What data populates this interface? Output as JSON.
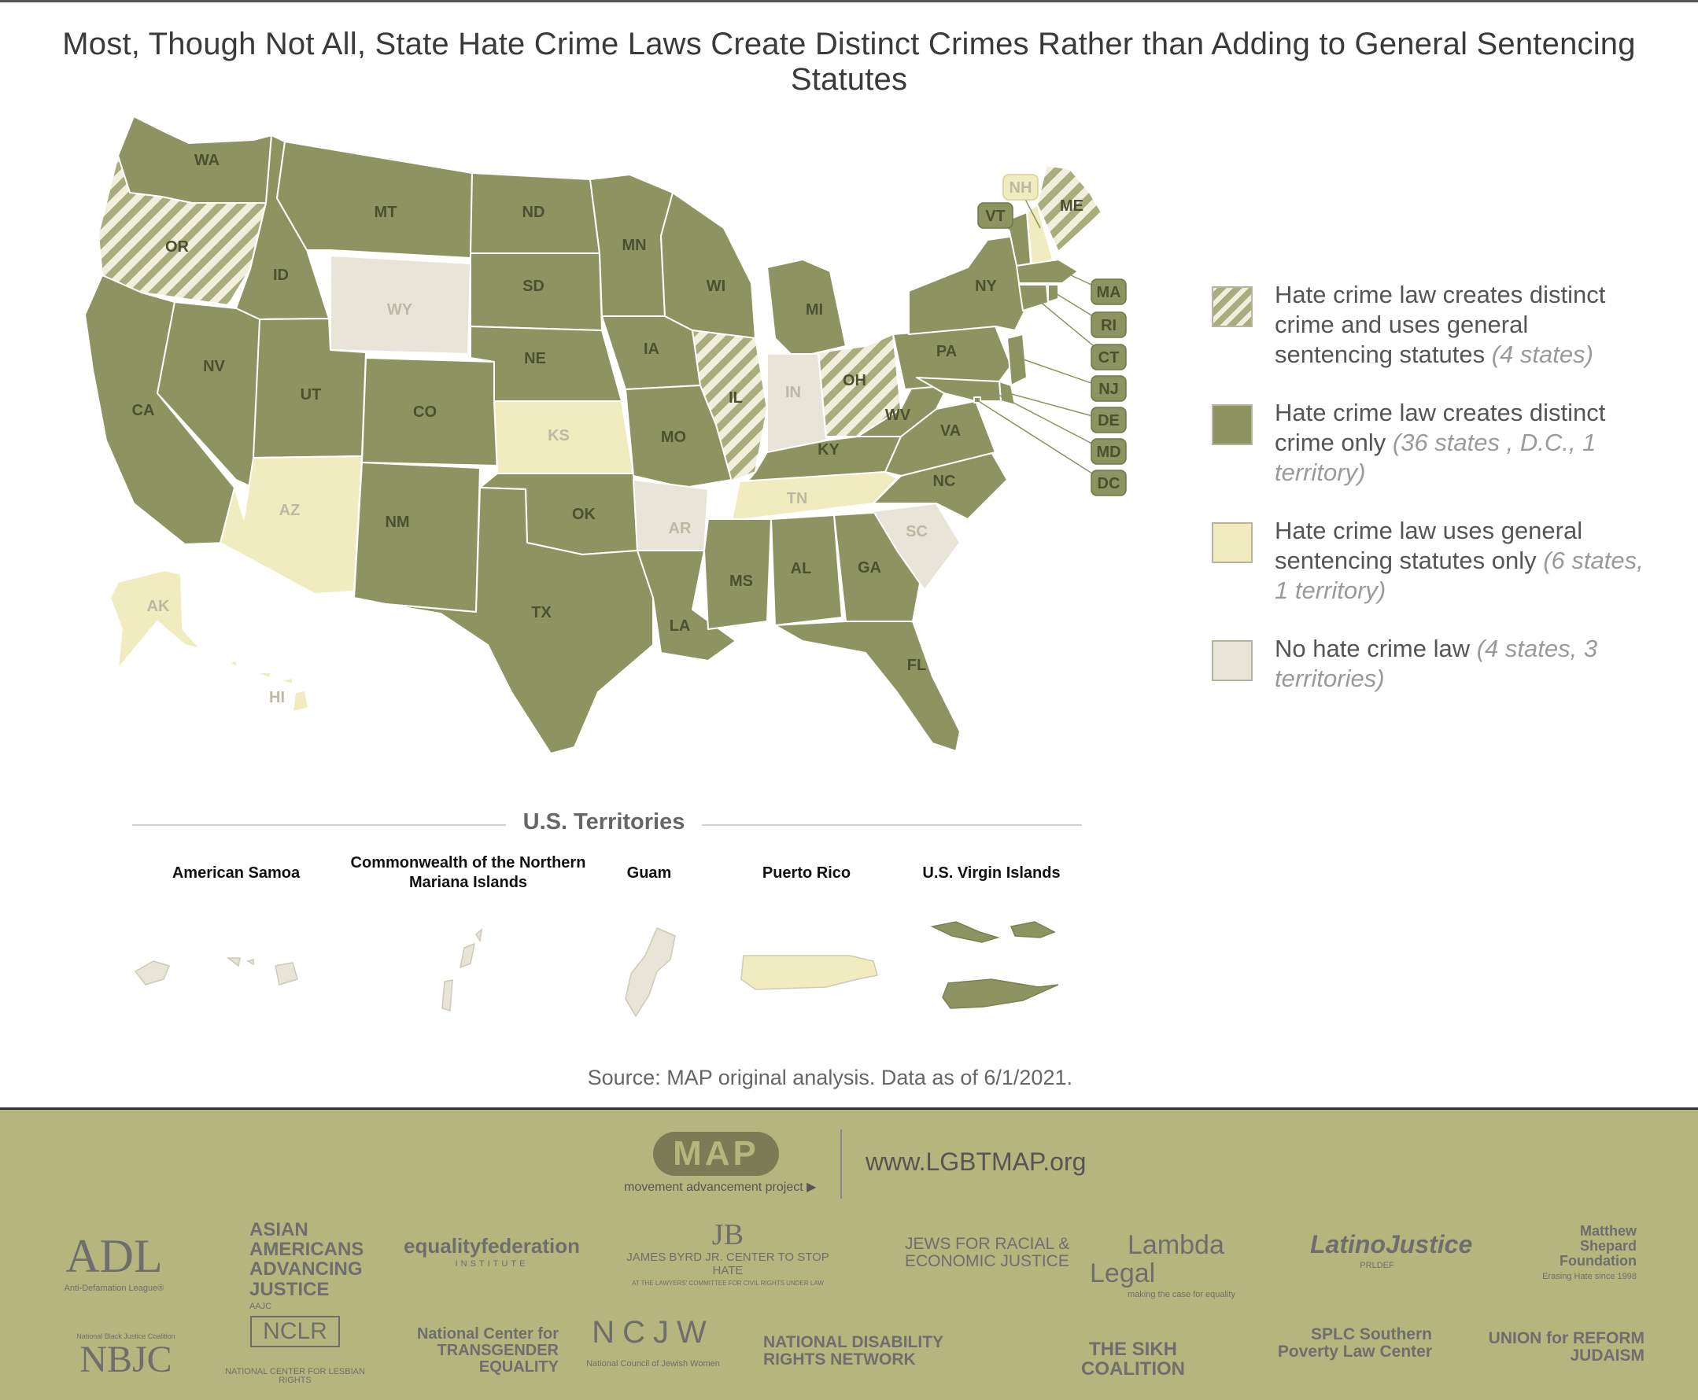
{
  "title": "Most, Though Not All, State Hate Crime Laws Create Distinct Crimes Rather than Adding to General Sentencing Statutes",
  "colors": {
    "distinct_and_general": "#a8ad7e",
    "distinct_only": "#8d9461",
    "general_only": "#f1ebc0",
    "none": "#e8e5d8",
    "footer": "#b5b67e"
  },
  "states": {
    "WA": "WA",
    "OR": "OR",
    "CA": "CA",
    "ID": "ID",
    "NV": "NV",
    "MT": "MT",
    "WY": "WY",
    "UT": "UT",
    "AZ": "AZ",
    "CO": "CO",
    "NM": "NM",
    "ND": "ND",
    "SD": "SD",
    "NE": "NE",
    "KS": "KS",
    "OK": "OK",
    "TX": "TX",
    "MN": "MN",
    "IA": "IA",
    "MO": "MO",
    "AR": "AR",
    "LA": "LA",
    "WI": "WI",
    "IL": "IL",
    "MI": "MI",
    "IN": "IN",
    "OH": "OH",
    "KY": "KY",
    "TN": "TN",
    "MS": "MS",
    "AL": "AL",
    "GA": "GA",
    "FL": "FL",
    "SC": "SC",
    "NC": "NC",
    "VA": "VA",
    "WV": "WV",
    "PA": "PA",
    "NY": "NY",
    "VT": "VT",
    "NH": "NH",
    "ME": "ME",
    "MA": "MA",
    "RI": "RI",
    "CT": "CT",
    "NJ": "NJ",
    "DE": "DE",
    "MD": "MD",
    "DC": "DC",
    "AK": "AK",
    "HI": "HI"
  },
  "categories": {
    "distinct_and_general": [
      "OR",
      "IL",
      "OH",
      "ME"
    ],
    "general_only": [
      "AZ",
      "KS",
      "TN",
      "NH",
      "AK",
      "HI"
    ],
    "none": [
      "WY",
      "AR",
      "IN",
      "SC"
    ]
  },
  "legend": {
    "item1_text": "Hate crime law creates distinct crime and uses general sentencing statutes ",
    "item1_note": "(4 states)",
    "item2_text": "Hate crime law creates distinct crime only ",
    "item2_note": "(36 states , D.C., 1 territory)",
    "item3_text": "Hate crime law uses general sentencing statutes only ",
    "item3_note": "(6 states, 1 territory)",
    "item4_text": "No hate crime law ",
    "item4_note": "(4 states, 3 territories)"
  },
  "territories": {
    "heading": "U.S. Territories",
    "american_samoa": "American Samoa",
    "cnmi": "Commonwealth of the Northern Mariana Islands",
    "guam": "Guam",
    "puerto_rico": "Puerto Rico",
    "usvi": "U.S. Virgin Islands"
  },
  "source": "Source: MAP original analysis. Data as of 6/1/2021.",
  "footer": {
    "logo": "MAP",
    "logo_sub": "movement advancement project ▶",
    "url": "www.LGBTMAP.org",
    "partners": {
      "adl": "ADL",
      "adl_sub": "Anti-Defamation League®",
      "aajc": "ASIAN AMERICANS ADVANCING JUSTICE",
      "aajc_sub": "AAJC",
      "efi": "equalityfederation",
      "efi_sub": "INSTITUTE",
      "byrd": "JAMES BYRD JR. CENTER TO STOP HATE",
      "byrd_sub": "AT THE LAWYERS' COMMITTEE FOR CIVIL RIGHTS UNDER LAW",
      "jfrej": "JEWS FOR RACIAL & ECONOMIC JUSTICE",
      "lambda": "Lambda Legal",
      "lambda_sub": "making the case for equality",
      "latino": "LatinoJustice",
      "latino_sub": "PRLDEF",
      "msf": "Matthew Shepard Foundation",
      "msf_sub": "Erasing Hate since 1998",
      "nbjc": "NBJC",
      "nbjc_sub": "National Black Justice Coalition",
      "nclr": "NCLR",
      "nclr_sub": "NATIONAL CENTER FOR LESBIAN RIGHTS",
      "ncte": "National Center for TRANSGENDER EQUALITY",
      "ncjw": "NCJW",
      "ncjw_sub": "National Council of Jewish Women",
      "ndrn": "NATIONAL DISABILITY RIGHTS NETWORK",
      "sikh": "THE SIKH COALITION",
      "splc": "SPLC Southern Poverty Law Center",
      "urj": "UNION for REFORM JUDAISM"
    }
  }
}
